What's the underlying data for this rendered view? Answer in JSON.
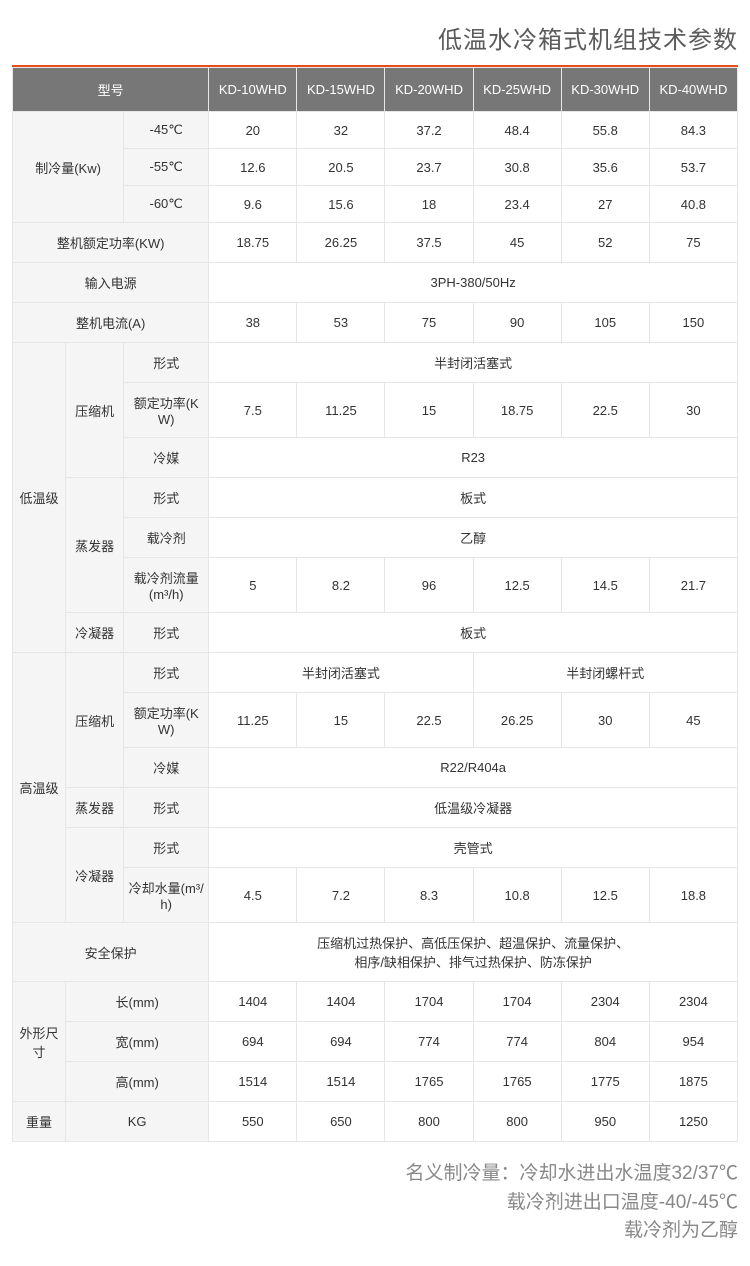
{
  "title": "低温水冷箱式机组技术参数",
  "accent_color": "#e84e1c",
  "header_bg": "#777777",
  "label_bg": "#f5f5f5",
  "border_color": "#e6e6e6",
  "text_color": "#333333",
  "header": {
    "model_label": "型号",
    "models": [
      "KD-10WHD",
      "KD-15WHD",
      "KD-20WHD",
      "KD-25WHD",
      "KD-30WHD",
      "KD-40WHD"
    ]
  },
  "cooling": {
    "label": "制冷量(Kw)",
    "rows": [
      {
        "temp": "-45℃",
        "v": [
          "20",
          "32",
          "37.2",
          "48.4",
          "55.8",
          "84.3"
        ]
      },
      {
        "temp": "-55℃",
        "v": [
          "12.6",
          "20.5",
          "23.7",
          "30.8",
          "35.6",
          "53.7"
        ]
      },
      {
        "temp": "-60℃",
        "v": [
          "9.6",
          "15.6",
          "18",
          "23.4",
          "27",
          "40.8"
        ]
      }
    ]
  },
  "rated_power": {
    "label": "整机额定功率(KW)",
    "v": [
      "18.75",
      "26.25",
      "37.5",
      "45",
      "52",
      "75"
    ]
  },
  "power_in": {
    "label": "输入电源",
    "val": "3PH-380/50Hz"
  },
  "current": {
    "label": "整机电流(A)",
    "v": [
      "38",
      "53",
      "75",
      "90",
      "105",
      "150"
    ]
  },
  "low_stage": {
    "label": "低温级",
    "compressor": {
      "label": "压缩机",
      "type": {
        "label": "形式",
        "val": "半封闭活塞式"
      },
      "power": {
        "label": "额定功率(KW)",
        "v": [
          "7.5",
          "11.25",
          "15",
          "18.75",
          "22.5",
          "30"
        ]
      },
      "refrig": {
        "label": "冷媒",
        "val": "R23"
      }
    },
    "evap": {
      "label": "蒸发器",
      "type": {
        "label": "形式",
        "val": "板式"
      },
      "coolant": {
        "label": "载冷剂",
        "val": "乙醇"
      },
      "flow": {
        "label": "载冷剂流量(m³/h)",
        "v": [
          "5",
          "8.2",
          "96",
          "12.5",
          "14.5",
          "21.7"
        ]
      }
    },
    "cond": {
      "label": "冷凝器",
      "type": {
        "label": "形式",
        "val": "板式"
      }
    }
  },
  "high_stage": {
    "label": "高温级",
    "compressor": {
      "label": "压缩机",
      "type": {
        "label": "形式",
        "left": "半封闭活塞式",
        "right": "半封闭螺杆式"
      },
      "power": {
        "label": "额定功率(KW)",
        "v": [
          "11.25",
          "15",
          "22.5",
          "26.25",
          "30",
          "45"
        ]
      },
      "refrig": {
        "label": "冷媒",
        "val": "R22/R404a"
      }
    },
    "evap": {
      "label": "蒸发器",
      "type": {
        "label": "形式",
        "val": "低温级冷凝器"
      }
    },
    "cond": {
      "label": "冷凝器",
      "type": {
        "label": "形式",
        "val": "壳管式"
      },
      "water": {
        "label": "冷却水量(m³/h)",
        "v": [
          "4.5",
          "7.2",
          "8.3",
          "10.8",
          "12.5",
          "18.8"
        ]
      }
    }
  },
  "safety": {
    "label": "安全保护",
    "line1": "压缩机过热保护、高低压保护、超温保护、流量保护、",
    "line2": "相序/缺相保护、排气过热保护、防冻保护"
  },
  "dims": {
    "label": "外形尺寸",
    "rows": [
      {
        "label": "长(mm)",
        "v": [
          "1404",
          "1404",
          "1704",
          "1704",
          "2304",
          "2304"
        ]
      },
      {
        "label": "宽(mm)",
        "v": [
          "694",
          "694",
          "774",
          "774",
          "804",
          "954"
        ]
      },
      {
        "label": "高(mm)",
        "v": [
          "1514",
          "1514",
          "1765",
          "1765",
          "1775",
          "1875"
        ]
      }
    ]
  },
  "weight": {
    "label": "重量",
    "unit": "KG",
    "v": [
      "550",
      "650",
      "800",
      "800",
      "950",
      "1250"
    ]
  },
  "footnotes": {
    "l1": "名义制冷量：冷却水进出水温度32/37℃",
    "l2": "载冷剂进出口温度-40/-45℃",
    "l3": "载冷剂为乙醇"
  }
}
